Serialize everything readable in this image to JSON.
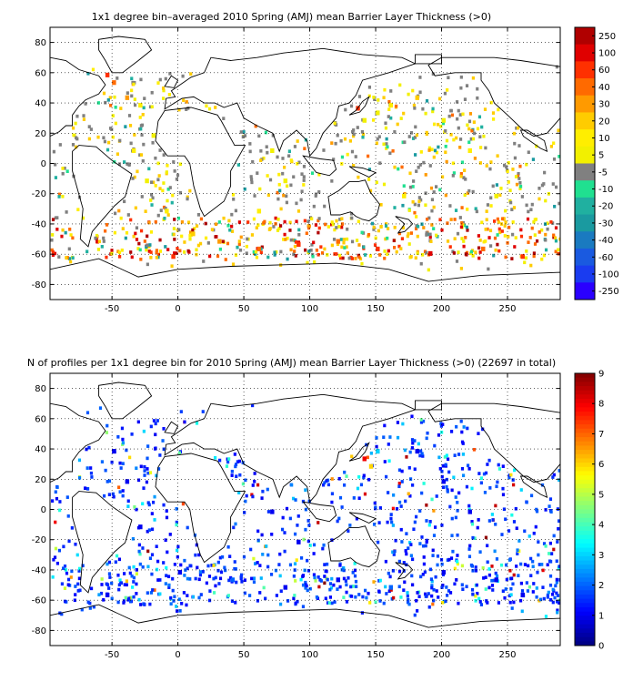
{
  "chart_data": [
    {
      "type": "heatmap",
      "title": "1x1 degree bin–averaged 2010 Spring (AMJ) mean Barrier Layer Thickness (>0)",
      "xlim": [
        -97,
        290
      ],
      "ylim": [
        -90,
        90
      ],
      "x_ticks": [
        -50,
        0,
        50,
        100,
        150,
        200,
        250
      ],
      "y_ticks": [
        80,
        60,
        40,
        20,
        0,
        -20,
        -40,
        -60,
        -80
      ],
      "grid": true,
      "colorbar": {
        "labels": [
          "250",
          "100",
          "60",
          "40",
          "30",
          "20",
          "10",
          "5",
          "-5",
          "-10",
          "-20",
          "-30",
          "-40",
          "-60",
          "-100",
          "-250"
        ],
        "colors": [
          "#b00000",
          "#e00000",
          "#ff3000",
          "#ff6a00",
          "#ff9a00",
          "#ffcc00",
          "#ffee00",
          "#f2f000",
          "#808080",
          "#20e090",
          "#20b0a0",
          "#1a9aa0",
          "#1a7ac0",
          "#1a5ae0",
          "#1a3cf0",
          "#2a00ff"
        ]
      },
      "samples": [
        {
          "x": -55,
          "y": 60,
          "v": 60
        },
        {
          "x": -50,
          "y": 55,
          "v": 40
        },
        {
          "x": -40,
          "y": 45,
          "v": 30
        },
        {
          "x": -30,
          "y": 40,
          "v": 10
        },
        {
          "x": -20,
          "y": 20,
          "v": 5
        },
        {
          "x": -35,
          "y": 10,
          "v": 10
        },
        {
          "x": -25,
          "y": -10,
          "v": 5
        },
        {
          "x": -10,
          "y": -30,
          "v": 10
        },
        {
          "x": 10,
          "y": -45,
          "v": 20
        },
        {
          "x": 30,
          "y": -50,
          "v": 30
        },
        {
          "x": 60,
          "y": -55,
          "v": 40
        },
        {
          "x": 90,
          "y": -52,
          "v": 60
        },
        {
          "x": 120,
          "y": -50,
          "v": 40
        },
        {
          "x": 150,
          "y": -55,
          "v": 60
        },
        {
          "x": 190,
          "y": -58,
          "v": 100
        },
        {
          "x": 230,
          "y": -55,
          "v": 40
        },
        {
          "x": 260,
          "y": -60,
          "v": 60
        },
        {
          "x": 140,
          "y": 30,
          "v": 5
        },
        {
          "x": 150,
          "y": 35,
          "v": 5
        },
        {
          "x": 160,
          "y": 40,
          "v": 10
        },
        {
          "x": 180,
          "y": 45,
          "v": 20
        },
        {
          "x": 200,
          "y": 30,
          "v": 5
        },
        {
          "x": 220,
          "y": 10,
          "v": 10
        },
        {
          "x": 70,
          "y": 10,
          "v": 5
        },
        {
          "x": 80,
          "y": -10,
          "v": 5
        },
        {
          "x": 60,
          "y": -30,
          "v": 10
        },
        {
          "x": -5,
          "y": -60,
          "v": 60
        },
        {
          "x": 135,
          "y": 38,
          "v": 60
        },
        {
          "x": 170,
          "y": -20,
          "v": 10
        },
        {
          "x": 240,
          "y": -20,
          "v": 5
        }
      ]
    },
    {
      "type": "heatmap",
      "title": "N of profiles per 1x1 degree bin for 2010 Spring (AMJ) mean Barrier Layer Thickness (>0) (22697 in total)",
      "xlim": [
        -97,
        290
      ],
      "ylim": [
        -90,
        90
      ],
      "x_ticks": [
        -50,
        0,
        50,
        100,
        150,
        200,
        250
      ],
      "y_ticks": [
        80,
        60,
        40,
        20,
        0,
        -20,
        -40,
        -60,
        -80
      ],
      "grid": true,
      "colorbar": {
        "labels": [
          "9",
          "8",
          "7",
          "6",
          "5",
          "4",
          "3",
          "2",
          "1",
          "0"
        ],
        "range": [
          0,
          9
        ]
      },
      "samples": [
        {
          "x": -50,
          "y": 40,
          "v": 1
        },
        {
          "x": -40,
          "y": 20,
          "v": 1
        },
        {
          "x": -30,
          "y": -10,
          "v": 1
        },
        {
          "x": 0,
          "y": -40,
          "v": 1
        },
        {
          "x": 40,
          "y": -45,
          "v": 2
        },
        {
          "x": 80,
          "y": -50,
          "v": 1
        },
        {
          "x": 120,
          "y": -45,
          "v": 1
        },
        {
          "x": 160,
          "y": -50,
          "v": 2
        },
        {
          "x": 200,
          "y": -40,
          "v": 1
        },
        {
          "x": 240,
          "y": -45,
          "v": 1
        },
        {
          "x": 140,
          "y": 35,
          "v": 8
        },
        {
          "x": 145,
          "y": 30,
          "v": 6
        },
        {
          "x": 150,
          "y": 40,
          "v": 3
        },
        {
          "x": 180,
          "y": 40,
          "v": 1
        },
        {
          "x": 200,
          "y": 20,
          "v": 1
        },
        {
          "x": 220,
          "y": 0,
          "v": 1
        },
        {
          "x": 70,
          "y": 0,
          "v": 1
        },
        {
          "x": 90,
          "y": -20,
          "v": 1
        },
        {
          "x": 260,
          "y": -55,
          "v": 1
        },
        {
          "x": -55,
          "y": -55,
          "v": 1
        }
      ]
    }
  ]
}
